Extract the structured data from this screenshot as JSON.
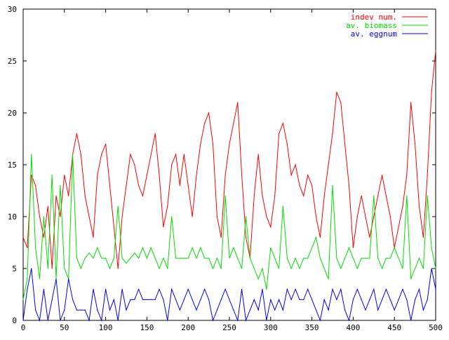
{
  "chart_data": {
    "type": "line",
    "xlim": [
      0,
      500
    ],
    "ylim": [
      0,
      30
    ],
    "x_ticks": [
      0,
      50,
      100,
      150,
      200,
      250,
      300,
      350,
      400,
      450,
      500
    ],
    "y_ticks": [
      0,
      5,
      10,
      15,
      20,
      25,
      30
    ],
    "grid": false,
    "legend_position": "top-right",
    "series": [
      {
        "name": "indev num.",
        "color": "#ff0000",
        "points": [
          [
            0,
            8
          ],
          [
            5,
            7
          ],
          [
            10,
            14
          ],
          [
            15,
            13
          ],
          [
            20,
            10
          ],
          [
            25,
            8
          ],
          [
            30,
            11
          ],
          [
            35,
            5
          ],
          [
            40,
            12
          ],
          [
            45,
            10
          ],
          [
            50,
            14
          ],
          [
            55,
            12
          ],
          [
            60,
            16
          ],
          [
            65,
            18
          ],
          [
            70,
            16
          ],
          [
            75,
            12
          ],
          [
            80,
            10
          ],
          [
            85,
            8
          ],
          [
            90,
            14
          ],
          [
            95,
            16
          ],
          [
            100,
            17
          ],
          [
            105,
            13
          ],
          [
            110,
            9
          ],
          [
            115,
            5
          ],
          [
            120,
            10
          ],
          [
            125,
            13
          ],
          [
            130,
            16
          ],
          [
            135,
            15
          ],
          [
            140,
            13
          ],
          [
            145,
            12
          ],
          [
            150,
            14
          ],
          [
            155,
            16
          ],
          [
            160,
            18
          ],
          [
            165,
            14
          ],
          [
            170,
            9
          ],
          [
            175,
            11
          ],
          [
            180,
            15
          ],
          [
            185,
            16
          ],
          [
            190,
            13
          ],
          [
            195,
            16
          ],
          [
            200,
            13
          ],
          [
            205,
            10
          ],
          [
            210,
            14
          ],
          [
            215,
            17
          ],
          [
            220,
            19
          ],
          [
            225,
            20
          ],
          [
            230,
            17
          ],
          [
            235,
            10
          ],
          [
            240,
            8
          ],
          [
            245,
            14
          ],
          [
            250,
            17
          ],
          [
            255,
            19
          ],
          [
            260,
            21
          ],
          [
            265,
            14
          ],
          [
            270,
            8
          ],
          [
            275,
            6
          ],
          [
            280,
            12
          ],
          [
            285,
            16
          ],
          [
            290,
            12
          ],
          [
            295,
            10
          ],
          [
            300,
            9
          ],
          [
            305,
            12
          ],
          [
            310,
            18
          ],
          [
            315,
            19
          ],
          [
            320,
            17
          ],
          [
            325,
            14
          ],
          [
            330,
            15
          ],
          [
            335,
            13
          ],
          [
            340,
            12
          ],
          [
            345,
            14
          ],
          [
            350,
            13
          ],
          [
            355,
            10
          ],
          [
            360,
            8
          ],
          [
            365,
            12
          ],
          [
            370,
            15
          ],
          [
            375,
            18
          ],
          [
            380,
            22
          ],
          [
            385,
            21
          ],
          [
            390,
            17
          ],
          [
            395,
            13
          ],
          [
            400,
            7
          ],
          [
            405,
            10
          ],
          [
            410,
            12
          ],
          [
            415,
            10
          ],
          [
            420,
            8
          ],
          [
            425,
            10
          ],
          [
            430,
            12
          ],
          [
            435,
            14
          ],
          [
            440,
            12
          ],
          [
            445,
            10
          ],
          [
            450,
            7
          ],
          [
            455,
            9
          ],
          [
            460,
            11
          ],
          [
            465,
            14
          ],
          [
            470,
            21
          ],
          [
            475,
            17
          ],
          [
            480,
            11
          ],
          [
            485,
            8
          ],
          [
            490,
            14
          ],
          [
            495,
            22
          ],
          [
            500,
            26
          ]
        ]
      },
      {
        "name": "av. biomass",
        "color": "#00e000",
        "points": [
          [
            0,
            2
          ],
          [
            5,
            4
          ],
          [
            10,
            16
          ],
          [
            15,
            7
          ],
          [
            20,
            4
          ],
          [
            25,
            10
          ],
          [
            30,
            5
          ],
          [
            35,
            14
          ],
          [
            40,
            4
          ],
          [
            45,
            13
          ],
          [
            50,
            5
          ],
          [
            55,
            4
          ],
          [
            60,
            16
          ],
          [
            65,
            6
          ],
          [
            70,
            5
          ],
          [
            75,
            6
          ],
          [
            80,
            6.5
          ],
          [
            85,
            6
          ],
          [
            90,
            7
          ],
          [
            95,
            6
          ],
          [
            100,
            6
          ],
          [
            105,
            5
          ],
          [
            110,
            6
          ],
          [
            115,
            11
          ],
          [
            120,
            6
          ],
          [
            125,
            5.5
          ],
          [
            130,
            6
          ],
          [
            135,
            6.5
          ],
          [
            140,
            6
          ],
          [
            145,
            7
          ],
          [
            150,
            6
          ],
          [
            155,
            7
          ],
          [
            160,
            6
          ],
          [
            165,
            5
          ],
          [
            170,
            6
          ],
          [
            175,
            5
          ],
          [
            180,
            10
          ],
          [
            185,
            6
          ],
          [
            190,
            6
          ],
          [
            195,
            6
          ],
          [
            200,
            6
          ],
          [
            205,
            7
          ],
          [
            210,
            6
          ],
          [
            215,
            7
          ],
          [
            220,
            6
          ],
          [
            225,
            6
          ],
          [
            230,
            5
          ],
          [
            235,
            6
          ],
          [
            240,
            5
          ],
          [
            245,
            12
          ],
          [
            250,
            6
          ],
          [
            255,
            7
          ],
          [
            260,
            6
          ],
          [
            265,
            5
          ],
          [
            270,
            10
          ],
          [
            275,
            6
          ],
          [
            280,
            5
          ],
          [
            285,
            4
          ],
          [
            290,
            5
          ],
          [
            295,
            3
          ],
          [
            300,
            7
          ],
          [
            305,
            6
          ],
          [
            310,
            5
          ],
          [
            315,
            11
          ],
          [
            320,
            6
          ],
          [
            325,
            5
          ],
          [
            330,
            6
          ],
          [
            335,
            5
          ],
          [
            340,
            6
          ],
          [
            345,
            6
          ],
          [
            350,
            7
          ],
          [
            355,
            8
          ],
          [
            360,
            6
          ],
          [
            365,
            5
          ],
          [
            370,
            4
          ],
          [
            375,
            13
          ],
          [
            380,
            6
          ],
          [
            385,
            5
          ],
          [
            390,
            6
          ],
          [
            395,
            7
          ],
          [
            400,
            6
          ],
          [
            405,
            5
          ],
          [
            410,
            6
          ],
          [
            415,
            6
          ],
          [
            420,
            6
          ],
          [
            425,
            12
          ],
          [
            430,
            6
          ],
          [
            435,
            5
          ],
          [
            440,
            6
          ],
          [
            445,
            6
          ],
          [
            450,
            7
          ],
          [
            455,
            6
          ],
          [
            460,
            5
          ],
          [
            465,
            12
          ],
          [
            470,
            4
          ],
          [
            475,
            5
          ],
          [
            480,
            6
          ],
          [
            485,
            5
          ],
          [
            490,
            12
          ],
          [
            495,
            7
          ],
          [
            500,
            5
          ]
        ]
      },
      {
        "name": "av. eggnum",
        "color": "#0000ff",
        "points": [
          [
            0,
            0
          ],
          [
            5,
            3
          ],
          [
            10,
            5
          ],
          [
            15,
            1
          ],
          [
            20,
            0
          ],
          [
            25,
            3
          ],
          [
            30,
            0
          ],
          [
            35,
            2
          ],
          [
            40,
            4
          ],
          [
            45,
            0
          ],
          [
            50,
            1
          ],
          [
            55,
            4
          ],
          [
            60,
            2
          ],
          [
            65,
            1
          ],
          [
            70,
            1
          ],
          [
            75,
            1
          ],
          [
            80,
            0
          ],
          [
            85,
            3
          ],
          [
            90,
            1
          ],
          [
            95,
            0
          ],
          [
            100,
            3
          ],
          [
            105,
            1
          ],
          [
            110,
            2
          ],
          [
            115,
            0
          ],
          [
            120,
            3
          ],
          [
            125,
            1
          ],
          [
            130,
            2
          ],
          [
            135,
            2
          ],
          [
            140,
            3
          ],
          [
            145,
            2
          ],
          [
            150,
            2
          ],
          [
            155,
            2
          ],
          [
            160,
            2
          ],
          [
            165,
            3
          ],
          [
            170,
            2
          ],
          [
            175,
            0
          ],
          [
            180,
            3
          ],
          [
            185,
            2
          ],
          [
            190,
            1
          ],
          [
            195,
            2
          ],
          [
            200,
            3
          ],
          [
            205,
            2
          ],
          [
            210,
            1
          ],
          [
            215,
            2
          ],
          [
            220,
            3
          ],
          [
            225,
            2
          ],
          [
            230,
            0
          ],
          [
            235,
            1
          ],
          [
            240,
            2
          ],
          [
            245,
            3
          ],
          [
            250,
            2
          ],
          [
            255,
            1
          ],
          [
            260,
            0
          ],
          [
            265,
            3
          ],
          [
            270,
            0
          ],
          [
            275,
            1
          ],
          [
            280,
            2
          ],
          [
            285,
            1
          ],
          [
            290,
            3
          ],
          [
            295,
            0
          ],
          [
            300,
            2
          ],
          [
            305,
            1
          ],
          [
            310,
            2
          ],
          [
            315,
            1
          ],
          [
            320,
            3
          ],
          [
            325,
            2
          ],
          [
            330,
            3
          ],
          [
            335,
            2
          ],
          [
            340,
            2
          ],
          [
            345,
            3
          ],
          [
            350,
            2
          ],
          [
            355,
            1
          ],
          [
            360,
            0
          ],
          [
            365,
            2
          ],
          [
            370,
            1
          ],
          [
            375,
            3
          ],
          [
            380,
            2
          ],
          [
            385,
            3
          ],
          [
            390,
            1
          ],
          [
            395,
            0
          ],
          [
            400,
            2
          ],
          [
            405,
            3
          ],
          [
            410,
            2
          ],
          [
            415,
            1
          ],
          [
            420,
            2
          ],
          [
            425,
            3
          ],
          [
            430,
            1
          ],
          [
            435,
            2
          ],
          [
            440,
            3
          ],
          [
            445,
            2
          ],
          [
            450,
            1
          ],
          [
            455,
            2
          ],
          [
            460,
            3
          ],
          [
            465,
            2
          ],
          [
            470,
            0
          ],
          [
            475,
            2
          ],
          [
            480,
            3
          ],
          [
            485,
            1
          ],
          [
            490,
            2
          ],
          [
            495,
            5
          ],
          [
            500,
            3
          ]
        ]
      }
    ]
  }
}
